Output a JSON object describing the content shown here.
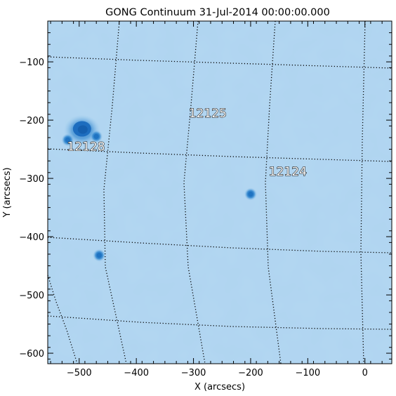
{
  "chart_data": {
    "type": "heatmap",
    "title": "GONG Continuum 31-Jul-2014 00:00:00.000",
    "xlabel": "X (arcsecs)",
    "ylabel": "Y (arcsecs)",
    "xlim": [
      -555,
      47
    ],
    "ylim": [
      -618,
      -30
    ],
    "x_ticks": [
      -500,
      -400,
      -300,
      -200,
      -100,
      0
    ],
    "y_ticks": [
      -100,
      -200,
      -300,
      -400,
      -500,
      -600
    ],
    "x_tick_labels": [
      "−500",
      "−400",
      "−300",
      "−200",
      "−100",
      "0"
    ],
    "y_tick_labels": [
      "−100",
      "−200",
      "−300",
      "−400",
      "−500",
      "−600"
    ],
    "colors": {
      "background": "#afd4f0",
      "spot": "#1f73c2",
      "frame": "#000000"
    },
    "active_regions": [
      {
        "label": "12125",
        "x": -275,
        "y": -188
      },
      {
        "label": "12128",
        "x": -488,
        "y": -245
      },
      {
        "label": "12124",
        "x": -135,
        "y": -288
      }
    ],
    "spots": [
      {
        "x": -495,
        "y": -215,
        "size": "large"
      },
      {
        "x": -470,
        "y": -228,
        "size": "small"
      },
      {
        "x": -520,
        "y": -234,
        "size": "small"
      },
      {
        "x": -200,
        "y": -327,
        "size": "small"
      },
      {
        "x": -465,
        "y": -432,
        "size": "small"
      }
    ],
    "grid": "heliographic lat/lon lines, dotted"
  }
}
